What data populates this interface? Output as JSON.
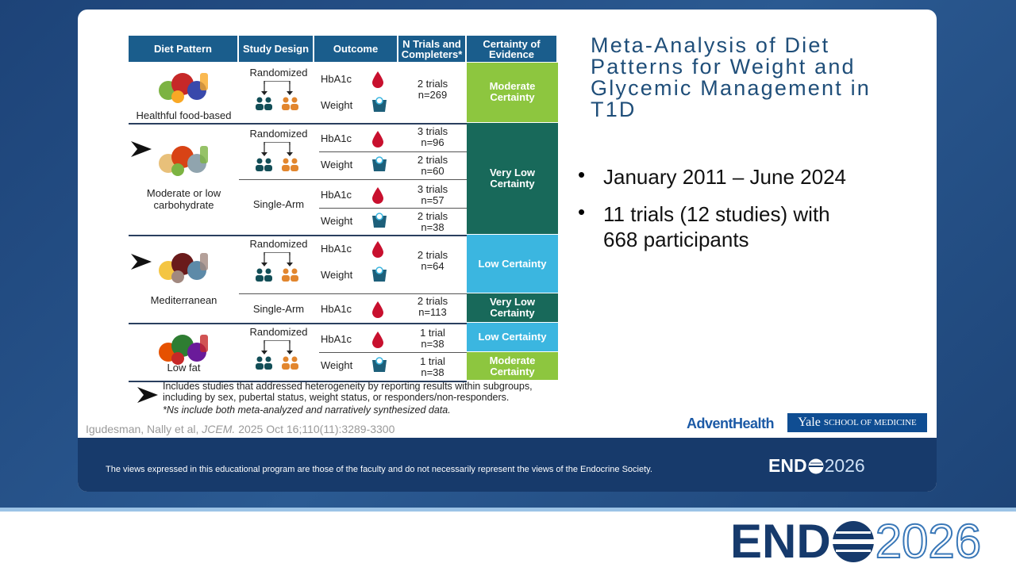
{
  "title": "Meta-Analysis of Diet Patterns for Weight and Glycemic Management in T1D",
  "bullets": [
    "January 2011 – June 2024",
    "11 trials (12 studies) with 668 participants"
  ],
  "table": {
    "headers": [
      "Diet Pattern",
      "Study Design",
      "Outcome",
      "N Trials and Completers*",
      "Certainty of Evidence"
    ],
    "diets": [
      "Healthful food-based",
      "Moderate or low carbohydrate",
      "Mediterranean",
      "Low fat"
    ],
    "designs": [
      "Randomized",
      "Randomized",
      "Single-Arm",
      "Randomized",
      "Single-Arm",
      "Randomized"
    ],
    "outcomes": [
      "HbA1c",
      "Weight",
      "HbA1c",
      "Weight",
      "HbA1c",
      "Weight",
      "HbA1c",
      "Weight",
      "HbA1c",
      "HbA1c",
      "Weight"
    ],
    "trials": [
      [
        "2 trials",
        "n=269"
      ],
      [
        "3 trials",
        "n=96"
      ],
      [
        "2 trials",
        "n=60"
      ],
      [
        "3 trials",
        "n=57"
      ],
      [
        "2 trials",
        "n=38"
      ],
      [
        "2 trials",
        "n=64"
      ],
      [
        "2 trials",
        "n=113"
      ],
      [
        "1 trial",
        "n=38"
      ],
      [
        "1 trial",
        "n=38"
      ]
    ],
    "certainty": [
      "Moderate Certainty",
      "Very Low Certainty",
      "Low Certainty",
      "Very Low Certainty",
      "Low Certainty",
      "Moderate Certainty"
    ]
  },
  "footnotes": [
    "Includes studies that addressed heterogeneity by reporting results within subgroups, including by sex, pubertal status, weight status, or responders/non-responders.",
    "*Ns include both meta-analyzed and narratively synthesized data."
  ],
  "citation": {
    "authors": "Igudesman, Nally et al,",
    "journal": "JCEM.",
    "details": "2025 Oct 16;110(11):3289-3300"
  },
  "logos": {
    "advent": "AdventHealth",
    "yale": "Yale",
    "yale_school": "SCHOOL OF MEDICINE"
  },
  "footer": {
    "disclaimer": "The views expressed in this educational program are those of the faculty and do not necessarily represent the views of the Endocrine Society.",
    "brand_left": "END",
    "brand_right": "2026"
  }
}
